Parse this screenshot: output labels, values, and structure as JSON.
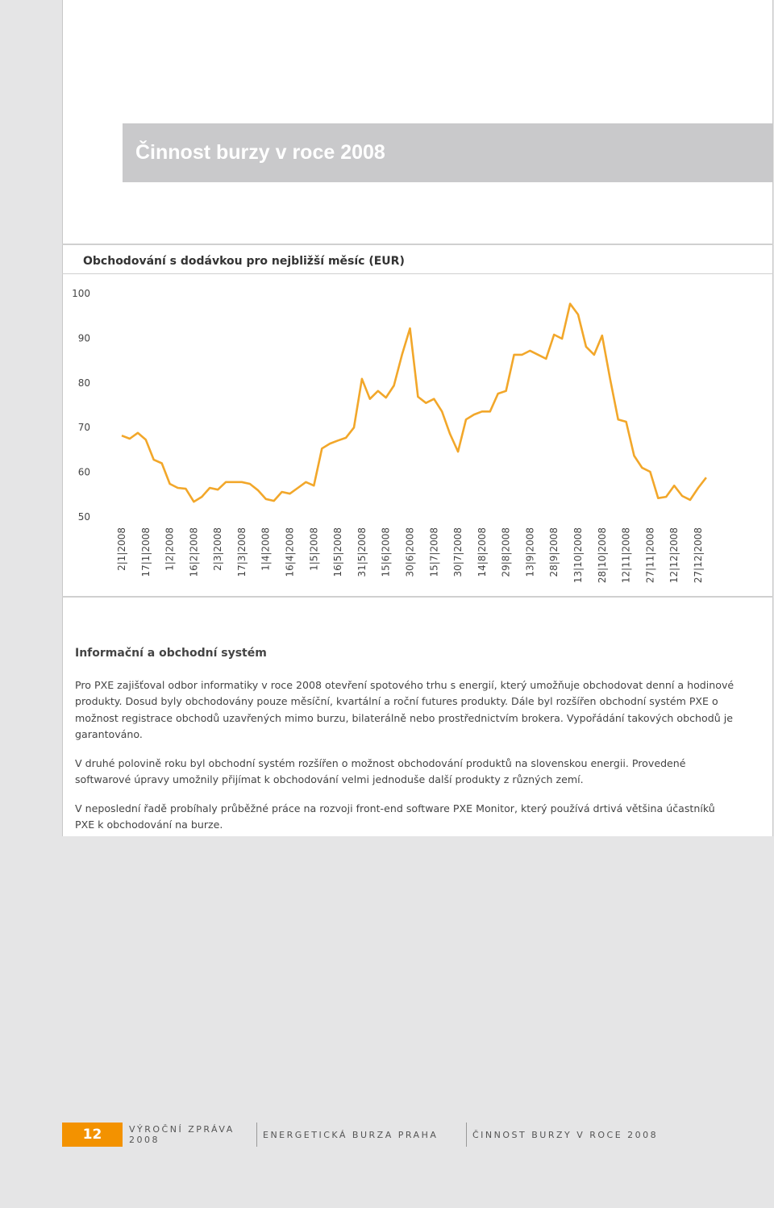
{
  "header": {
    "title": "Činnost burzy v roce 2008"
  },
  "chart_data": {
    "type": "line",
    "title": "Obchodování s dodávkou pro nejbližší měsíc (EUR)",
    "categories": [
      "2|1|2008",
      null,
      null,
      "17|1|2008",
      null,
      null,
      "1|2|2008",
      null,
      null,
      "16|2|2008",
      null,
      null,
      "2|3|2008",
      null,
      null,
      "17|3|2008",
      null,
      null,
      "1|4|2008",
      null,
      null,
      "16|4|2008",
      null,
      null,
      "1|5|2008",
      null,
      null,
      "16|5|2008",
      null,
      null,
      "31|5|2008",
      null,
      null,
      "15|6|2008",
      null,
      null,
      "30|6|2008",
      null,
      null,
      "15|7|2008",
      null,
      null,
      "30|7|2008",
      null,
      null,
      "14|8|2008",
      null,
      null,
      "29|8|2008",
      null,
      null,
      "13|9|2008",
      null,
      null,
      "28|9|2008",
      null,
      null,
      "13|10|2008",
      null,
      null,
      "28|10|2008",
      null,
      null,
      "12|11|2008",
      null,
      null,
      "27|11|2008",
      null,
      null,
      "12|12|2008",
      null,
      null,
      "27|12|2008",
      null
    ],
    "values": [
      68.2,
      67.5,
      68.8,
      67.3,
      62.8,
      62,
      57.4,
      56.5,
      56.3,
      53.4,
      54.5,
      56.5,
      56.1,
      57.8,
      57.8,
      57.8,
      57.4,
      56,
      54,
      53.6,
      55.6,
      55.2,
      56.5,
      57.8,
      57,
      65.3,
      66.4,
      67.1,
      67.7,
      70,
      80.9,
      76.4,
      78.2,
      76.7,
      79.4,
      86.3,
      92.2,
      76.9,
      75.5,
      76.4,
      73.6,
      68.6,
      64.6,
      71.8,
      72.9,
      73.6,
      73.6,
      77.6,
      78.2,
      86.3,
      86.3,
      87.2,
      86.3,
      85.4,
      90.8,
      89.9,
      97.7,
      95.3,
      88.1,
      86.3,
      90.6,
      80.9,
      71.8,
      71.3,
      63.7,
      61,
      60.1,
      54.2,
      54.5,
      57,
      54.7,
      53.8,
      56.5,
      58.8
    ],
    "color": "#f2a72a",
    "ylim": [
      50,
      100
    ],
    "yticks": [
      50,
      60,
      70,
      80,
      90,
      100
    ],
    "grid": false
  },
  "section": {
    "title": "Informační a obchodní systém",
    "paragraphs": [
      "Pro PXE zajišťoval odbor informatiky v roce 2008 otevření spotového trhu s energií, který umožňuje obchodovat denní a hodinové produkty. Dosud byly obchodovány pouze měsíční, kvartální a roční futures produkty. Dále byl rozšířen obchodní systém PXE o možnost registrace obchodů uzavřených mimo burzu, bilaterálně nebo prostřednictvím brokera. Vypořádání takových obchodů je garantováno.",
      "V druhé polovině roku byl obchodní systém rozšířen o možnost obchodování produktů na slovenskou energii. Provedené softwarové úpravy umožnily přijímat k obchodování velmi jednoduše další produkty z různých zemí.",
      "V neposlední řadě probíhaly průběžné práce na rozvoji front-end software PXE Monitor, který používá drtivá většina účastníků PXE k obchodování na burze."
    ]
  },
  "footer": {
    "page": "12",
    "items": [
      "VÝROČNÍ ZPRÁVA 2008",
      "ENERGETICKÁ BURZA PRAHA",
      "ČINNOST BURZY V ROCE 2008"
    ]
  }
}
